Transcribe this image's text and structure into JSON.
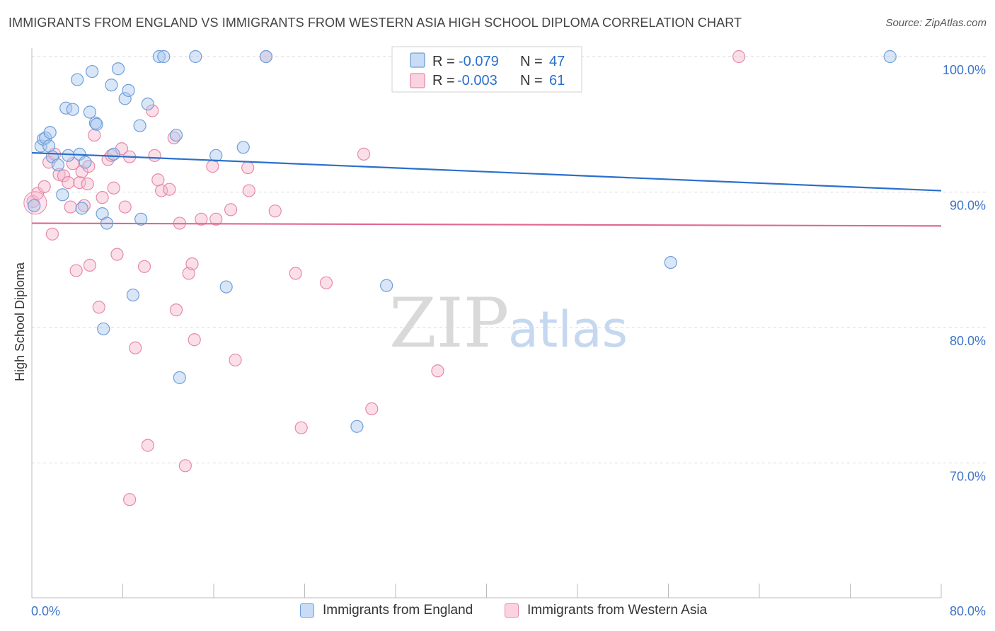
{
  "title": "IMMIGRANTS FROM ENGLAND VS IMMIGRANTS FROM WESTERN ASIA HIGH SCHOOL DIPLOMA CORRELATION CHART",
  "source": "Source: ZipAtlas.com",
  "watermark": {
    "zip": "ZIP",
    "atlas": "atlas"
  },
  "colors": {
    "england_fill": "#a9c8f0",
    "england_stroke": "#6f9fd8",
    "england_line": "#2a6fcc",
    "wasia_fill": "#f7b8cc",
    "wasia_stroke": "#e58aa8",
    "wasia_line": "#e0688f",
    "axis_label": "#3f74c7",
    "grid": "#d8d8d8"
  },
  "legend_top": {
    "rows": [
      {
        "r_label": "R =",
        "r_value": "-0.079",
        "n_label": "N =",
        "n_value": "47"
      },
      {
        "r_label": "R =",
        "r_value": "-0.003",
        "n_label": "N =",
        "n_value": "61"
      }
    ]
  },
  "legend_bottom": {
    "england": "Immigrants from England",
    "wasia": "Immigrants from Western Asia"
  },
  "chart_data": {
    "type": "scatter",
    "title": "IMMIGRANTS FROM ENGLAND VS IMMIGRANTS FROM WESTERN ASIA HIGH SCHOOL DIPLOMA CORRELATION CHART",
    "xlabel": "",
    "ylabel": "High School Diploma",
    "xlim": [
      0,
      80
    ],
    "ylim": [
      60,
      101.5
    ],
    "x_tick_labels": [
      "0.0%",
      "80.0%"
    ],
    "y_ticks": [
      70,
      80,
      90,
      100
    ],
    "y_tick_labels": [
      "70.0%",
      "80.0%",
      "90.0%",
      "100.0%"
    ],
    "grid": true,
    "legend_placement": "top-center",
    "series": [
      {
        "name": "Immigrants from England",
        "R": -0.079,
        "N": 47,
        "trend": {
          "x": [
            0,
            80
          ],
          "y": [
            92.9,
            90.1
          ]
        },
        "points": [
          [
            0.2,
            89.0
          ],
          [
            0.8,
            93.4
          ],
          [
            1.0,
            93.9
          ],
          [
            1.2,
            94.0
          ],
          [
            1.5,
            93.4
          ],
          [
            1.6,
            94.4
          ],
          [
            1.8,
            92.6
          ],
          [
            2.3,
            92.0
          ],
          [
            2.7,
            89.8
          ],
          [
            3.0,
            96.2
          ],
          [
            3.2,
            92.7
          ],
          [
            3.6,
            96.1
          ],
          [
            4.0,
            98.3
          ],
          [
            4.2,
            92.8
          ],
          [
            4.4,
            88.8
          ],
          [
            4.7,
            92.2
          ],
          [
            5.1,
            95.9
          ],
          [
            5.3,
            98.9
          ],
          [
            5.6,
            95.1
          ],
          [
            5.7,
            95.0
          ],
          [
            6.2,
            88.4
          ],
          [
            6.3,
            79.9
          ],
          [
            6.6,
            87.7
          ],
          [
            7.0,
            97.9
          ],
          [
            7.2,
            92.8
          ],
          [
            7.6,
            99.1
          ],
          [
            8.2,
            96.9
          ],
          [
            8.5,
            97.5
          ],
          [
            8.9,
            82.4
          ],
          [
            9.5,
            94.9
          ],
          [
            9.6,
            88.0
          ],
          [
            10.2,
            96.5
          ],
          [
            11.2,
            100.0
          ],
          [
            11.6,
            100.0
          ],
          [
            12.7,
            94.2
          ],
          [
            13.0,
            76.3
          ],
          [
            14.4,
            100.0
          ],
          [
            16.2,
            92.7
          ],
          [
            17.1,
            83.0
          ],
          [
            18.6,
            93.3
          ],
          [
            20.6,
            100.0
          ],
          [
            28.6,
            72.7
          ],
          [
            31.2,
            83.1
          ],
          [
            35.0,
            100.0
          ],
          [
            56.2,
            84.8
          ],
          [
            75.5,
            100.0
          ],
          [
            37.5,
            100.0
          ]
        ]
      },
      {
        "name": "Immigrants from Western Asia",
        "R": -0.003,
        "N": 61,
        "trend": {
          "x": [
            0,
            80
          ],
          "y": [
            87.7,
            87.5
          ]
        },
        "points": [
          [
            0.1,
            89.3
          ],
          [
            0.5,
            89.9
          ],
          [
            1.1,
            90.4
          ],
          [
            1.5,
            92.2
          ],
          [
            1.8,
            86.9
          ],
          [
            2.0,
            92.8
          ],
          [
            2.4,
            91.3
          ],
          [
            2.8,
            91.2
          ],
          [
            3.2,
            90.7
          ],
          [
            3.4,
            88.9
          ],
          [
            3.6,
            92.1
          ],
          [
            4.2,
            90.7
          ],
          [
            4.4,
            91.5
          ],
          [
            4.6,
            89.0
          ],
          [
            4.9,
            90.6
          ],
          [
            5.1,
            84.6
          ],
          [
            5.5,
            94.2
          ],
          [
            5.9,
            81.5
          ],
          [
            6.2,
            89.6
          ],
          [
            6.7,
            92.4
          ],
          [
            7.0,
            92.7
          ],
          [
            7.2,
            90.3
          ],
          [
            7.5,
            85.4
          ],
          [
            7.9,
            93.2
          ],
          [
            8.2,
            88.9
          ],
          [
            8.6,
            92.6
          ],
          [
            9.1,
            78.5
          ],
          [
            9.9,
            84.5
          ],
          [
            10.2,
            71.3
          ],
          [
            10.6,
            96.0
          ],
          [
            10.8,
            92.7
          ],
          [
            11.1,
            90.9
          ],
          [
            11.4,
            90.1
          ],
          [
            12.1,
            90.2
          ],
          [
            12.5,
            94.0
          ],
          [
            12.7,
            81.3
          ],
          [
            13.0,
            87.7
          ],
          [
            13.5,
            69.8
          ],
          [
            13.8,
            84.0
          ],
          [
            14.1,
            84.7
          ],
          [
            14.3,
            79.1
          ],
          [
            14.9,
            88.0
          ],
          [
            15.9,
            91.9
          ],
          [
            16.2,
            88.0
          ],
          [
            17.5,
            88.7
          ],
          [
            17.9,
            77.6
          ],
          [
            19.0,
            91.8
          ],
          [
            19.1,
            90.1
          ],
          [
            21.4,
            88.6
          ],
          [
            23.2,
            84.0
          ],
          [
            23.7,
            72.6
          ],
          [
            25.9,
            83.3
          ],
          [
            29.2,
            92.8
          ],
          [
            29.9,
            74.0
          ],
          [
            35.7,
            76.8
          ],
          [
            38.1,
            100.0
          ],
          [
            62.2,
            100.0
          ],
          [
            8.6,
            67.3
          ],
          [
            3.9,
            84.2
          ],
          [
            5.0,
            91.9
          ],
          [
            20.6,
            100.0
          ]
        ]
      }
    ]
  }
}
